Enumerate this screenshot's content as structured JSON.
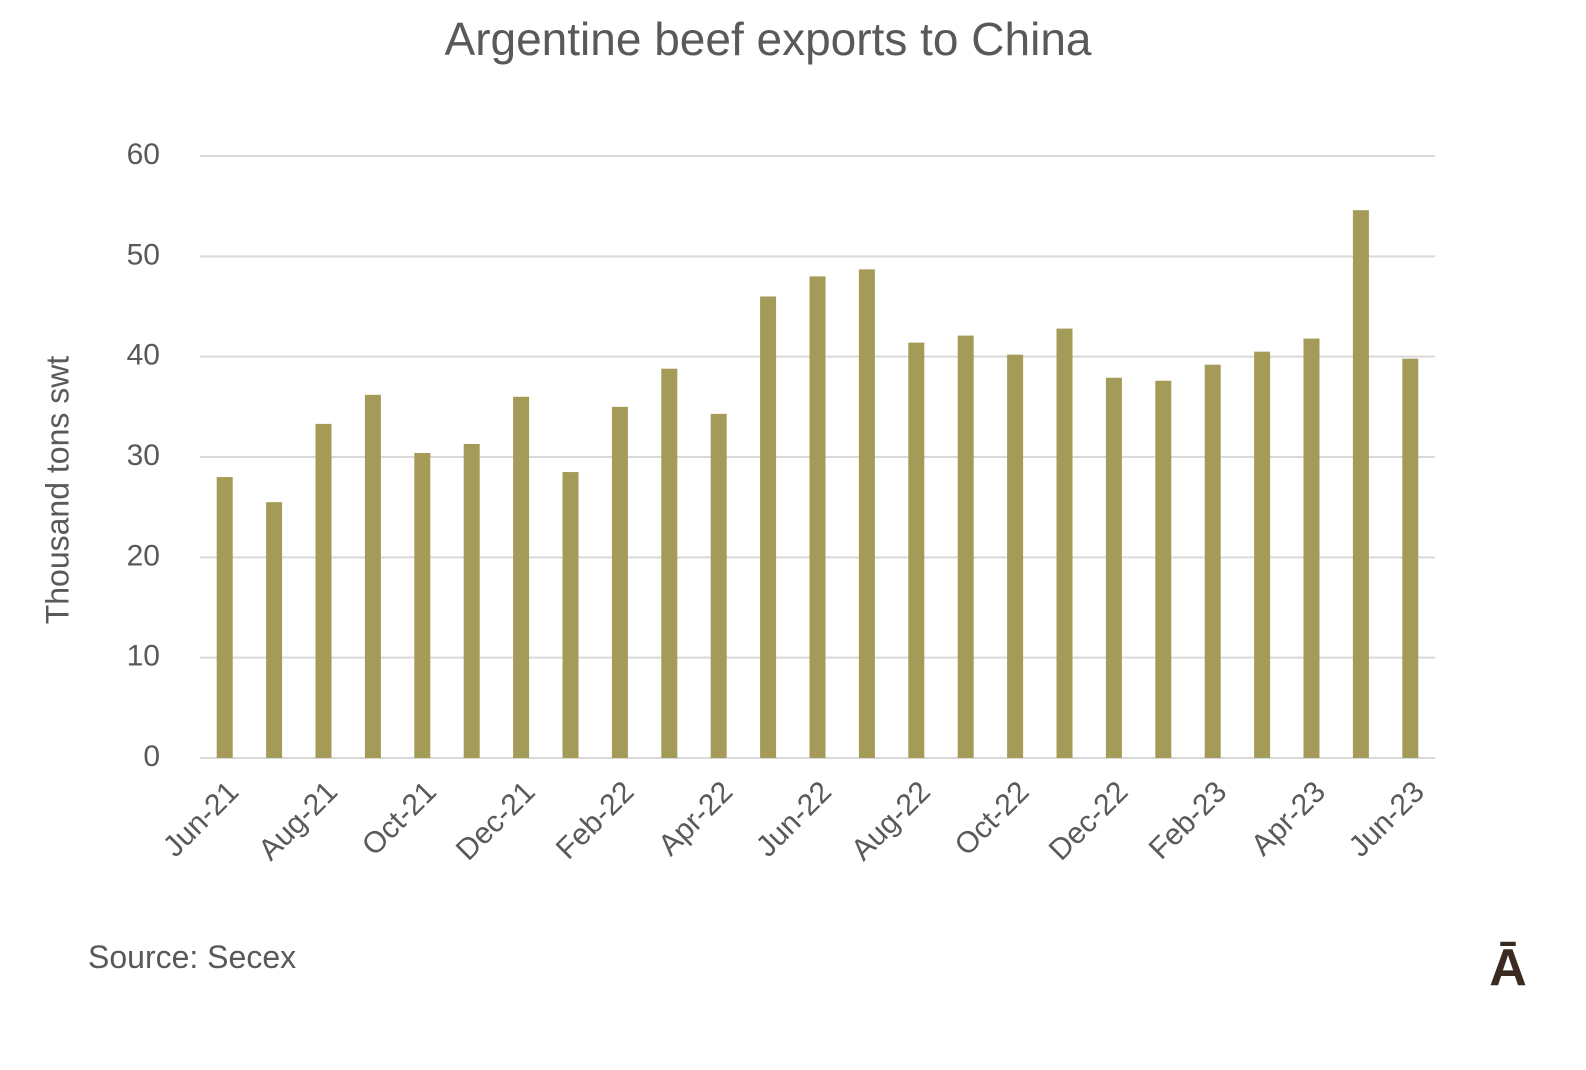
{
  "chart_data": {
    "type": "bar",
    "title": "Argentine beef exports to China",
    "y_label": "Thousand tons swt",
    "categories": [
      "Jun-21",
      null,
      "Aug-21",
      null,
      "Oct-21",
      null,
      "Dec-21",
      null,
      "Feb-22",
      null,
      "Apr-22",
      null,
      "Jun-22",
      null,
      "Aug-22",
      null,
      "Oct-22",
      null,
      "Dec-22",
      null,
      "Feb-23",
      null,
      "Apr-23",
      null,
      "Jun-23"
    ],
    "values": [
      28,
      25.5,
      33.3,
      36.2,
      30.4,
      31.3,
      36,
      28.5,
      35,
      38.8,
      34.3,
      46,
      48,
      48.7,
      41.4,
      42.1,
      40.2,
      42.8,
      37.9,
      37.6,
      39.2,
      40.5,
      41.8,
      54.6,
      39.8
    ],
    "color": "#a39b57",
    "ylim": [
      0,
      60
    ],
    "yticks": [
      0,
      10,
      20,
      30,
      40,
      50,
      60
    ],
    "grid": true
  },
  "source": "Source: Secex",
  "logo": "Ā"
}
